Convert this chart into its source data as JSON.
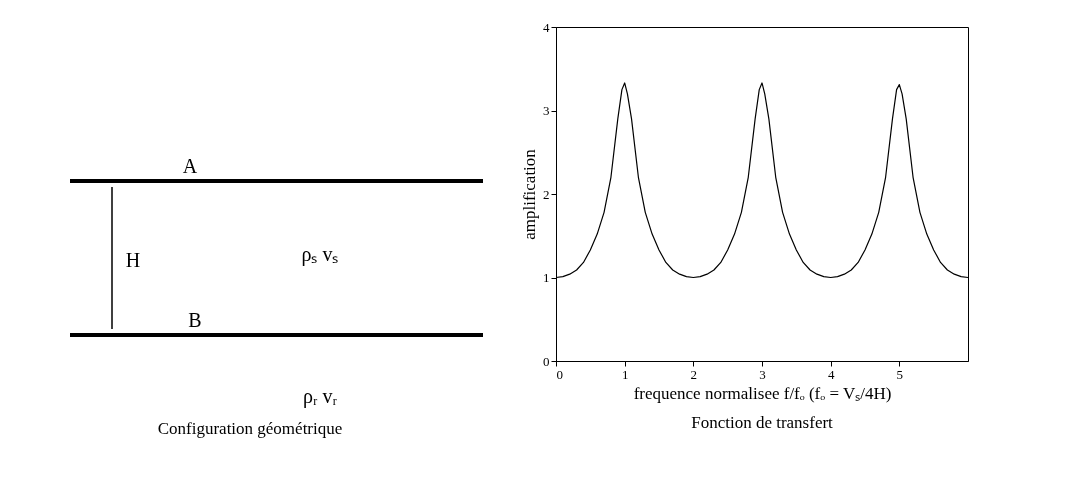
{
  "chart_data": [
    {
      "type": "other",
      "title": "Configuration géométrique",
      "annotations": [
        "A",
        "B",
        "H",
        "ρₛ vₛ",
        "ρᵣ vᵣ"
      ]
    },
    {
      "type": "line",
      "title": "Fonction de transfert",
      "xlabel": "frequence normalisee f/fₒ (fₒ = Vₛ/4H)",
      "ylabel": "amplification",
      "x": [
        0,
        0.1,
        0.2,
        0.3,
        0.4,
        0.5,
        0.6,
        0.7,
        0.8,
        0.9,
        0.96,
        1.0,
        1.04,
        1.1,
        1.2,
        1.3,
        1.4,
        1.5,
        1.6,
        1.7,
        1.8,
        1.9,
        2.0,
        2.1,
        2.2,
        2.3,
        2.4,
        2.5,
        2.6,
        2.7,
        2.8,
        2.9,
        2.96,
        3.0,
        3.04,
        3.1,
        3.2,
        3.3,
        3.4,
        3.5,
        3.6,
        3.7,
        3.8,
        3.9,
        4.0,
        4.1,
        4.2,
        4.3,
        4.4,
        4.5,
        4.6,
        4.7,
        4.8,
        4.9,
        4.96,
        5.0,
        5.04,
        5.1,
        5.2,
        5.3,
        5.4,
        5.5,
        5.6,
        5.7,
        5.8,
        5.9,
        6.0
      ],
      "series": [
        {
          "color": "#000000",
          "values": [
            1.0,
            1.01,
            1.04,
            1.09,
            1.18,
            1.33,
            1.52,
            1.78,
            2.2,
            2.9,
            3.25,
            3.33,
            3.2,
            2.9,
            2.2,
            1.78,
            1.52,
            1.33,
            1.18,
            1.09,
            1.04,
            1.01,
            1.0,
            1.01,
            1.04,
            1.09,
            1.18,
            1.33,
            1.52,
            1.78,
            2.2,
            2.9,
            3.25,
            3.33,
            3.2,
            2.9,
            2.2,
            1.78,
            1.52,
            1.33,
            1.18,
            1.09,
            1.04,
            1.01,
            1.0,
            1.01,
            1.04,
            1.09,
            1.18,
            1.33,
            1.52,
            1.78,
            2.2,
            2.9,
            3.25,
            3.31,
            3.2,
            2.9,
            2.2,
            1.78,
            1.52,
            1.33,
            1.18,
            1.09,
            1.04,
            1.01,
            1.0
          ]
        }
      ],
      "xlim": [
        0,
        6
      ],
      "xticks": [
        0,
        1,
        2,
        3,
        4,
        5
      ],
      "ylim": [
        0,
        4
      ],
      "yticks": [
        0,
        1,
        2,
        3,
        4
      ],
      "grid": false,
      "legend": false,
      "marker": "none",
      "line_style": "solid"
    }
  ]
}
